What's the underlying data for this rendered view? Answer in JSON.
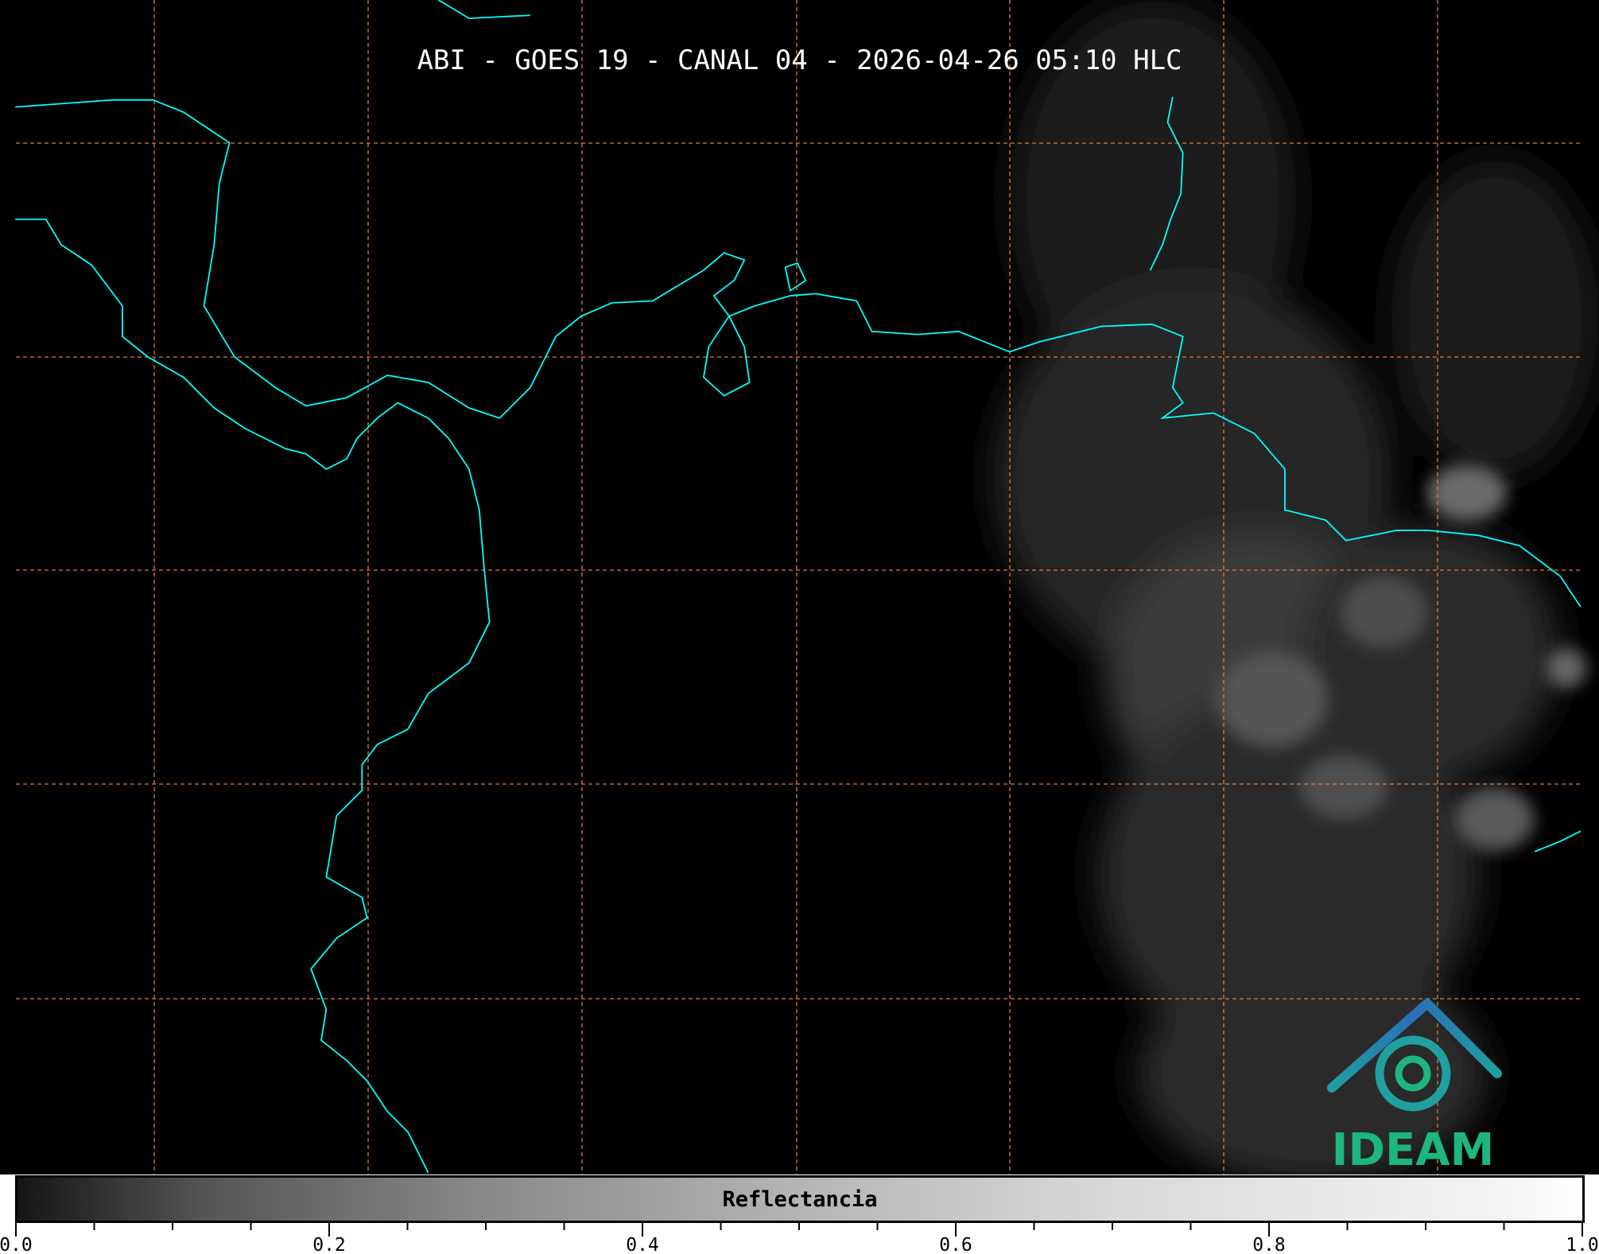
{
  "title": "ABI - GOES 19 - CANAL 04 - 2026-04-26 05:10 HLC",
  "colorbar": {
    "label": "Reflectancia",
    "range": [
      0.0,
      1.0
    ],
    "tick_labels": [
      "0.0",
      "0.2",
      "0.4",
      "0.6",
      "0.8",
      "1.0"
    ],
    "colormap": "grayscale black-to-white"
  },
  "map": {
    "coastline_color": "#00ffff",
    "gridline_color": "#e07b39",
    "gridline_style": "dashed",
    "background_color": "#000000"
  },
  "logo": {
    "text": "IDEAM",
    "text_color": "#1db67e",
    "roof_color": "#2a86b8"
  }
}
